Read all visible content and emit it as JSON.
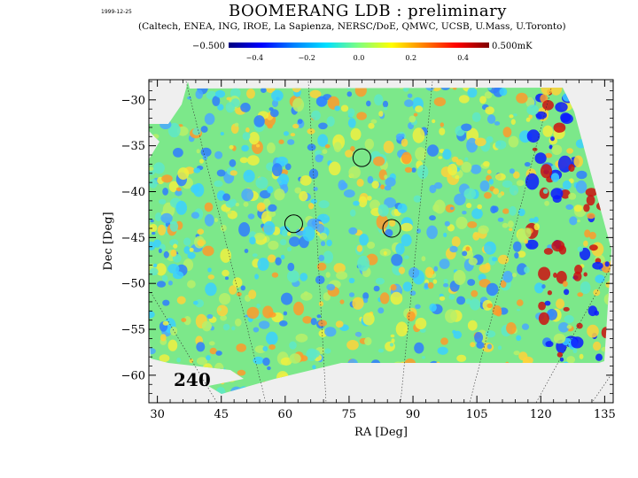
{
  "header": {
    "date": "1999-12-25",
    "title": "BOOMERANG LDB : preliminary",
    "subtitle": "(Caltech, ENEA, ING, IROE, La Sapienza, NERSC/DoE, QMWC, UCSB, U.Mass, U.Toronto)"
  },
  "colorbar": {
    "min_label": "−0.500",
    "max_label": "0.500mK",
    "min": -0.5,
    "max": 0.5,
    "ticks": [
      -0.4,
      -0.2,
      0.0,
      0.2,
      0.4
    ],
    "tick_labels": [
      "−0.4",
      "−0.2",
      "0.0",
      "0.2",
      "0.4"
    ],
    "colors": [
      "#00007f",
      "#0000ff",
      "#0080ff",
      "#00e0ff",
      "#7fff7f",
      "#ffff00",
      "#ff8000",
      "#ff0000",
      "#7f0000"
    ]
  },
  "chart_data": {
    "type": "heatmap",
    "xlabel": "RA [Deg]",
    "ylabel": "Dec [Deg]",
    "xlim": [
      28,
      137
    ],
    "ylim": [
      -63,
      -27.8
    ],
    "xticks": [
      30,
      45,
      60,
      75,
      90,
      105,
      120,
      135
    ],
    "xtick_labels": [
      "30",
      "45",
      "60",
      "75",
      "90",
      "105",
      "120",
      "135"
    ],
    "yticks": [
      -30,
      -35,
      -40,
      -45,
      -50,
      -55,
      -60
    ],
    "ytick_labels": [
      "−30",
      "−35",
      "−40",
      "−45",
      "−50",
      "−55",
      "−60"
    ],
    "annotation": "240",
    "circles": [
      {
        "ra": 78,
        "dec": -36.3
      },
      {
        "ra": 62,
        "dec": -43.5
      },
      {
        "ra": 85,
        "dec": -44.0
      }
    ],
    "grid": "dotted RA meridians",
    "colorscale": "jet, −0.5 to 0.5 mK"
  }
}
